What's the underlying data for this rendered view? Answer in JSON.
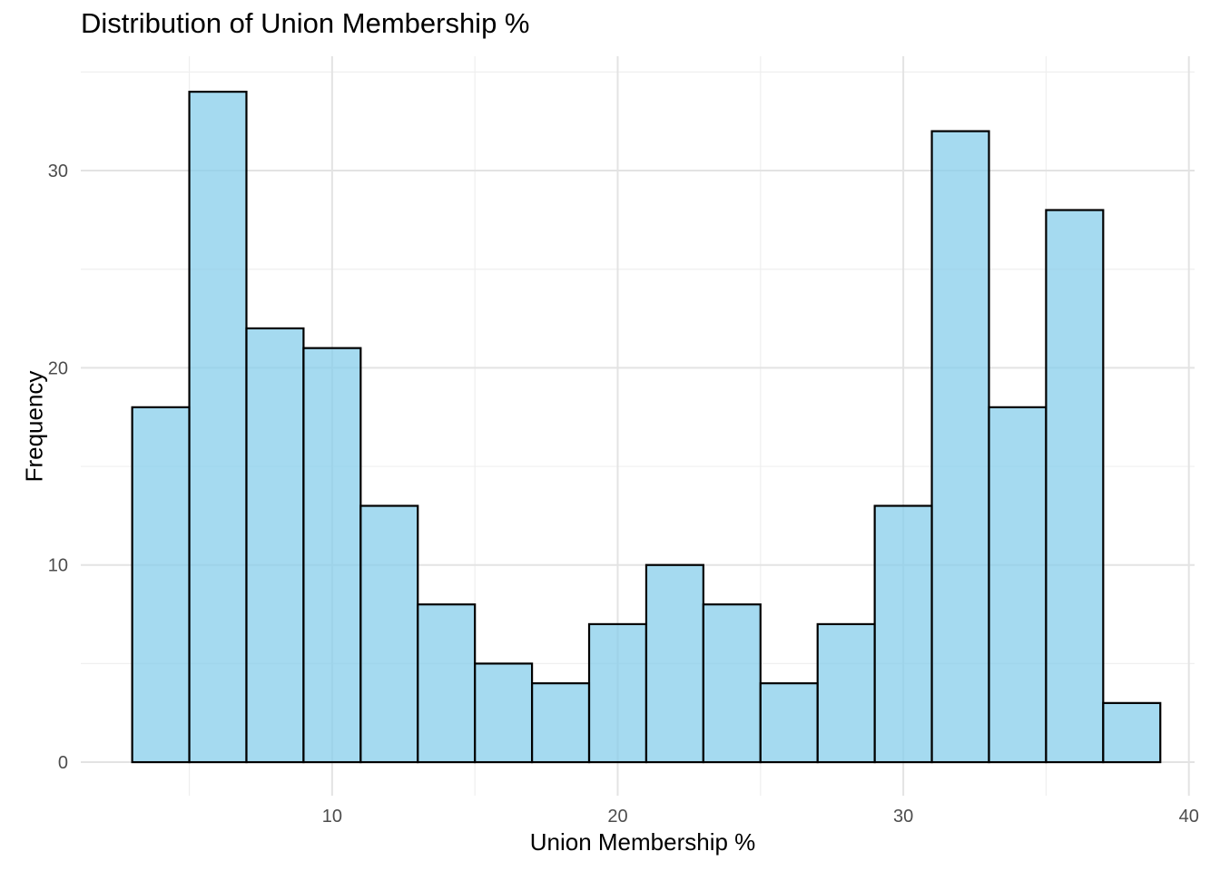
{
  "chart_data": {
    "type": "bar",
    "subtype": "histogram",
    "title": "Distribution of Union Membership %",
    "xlabel": "Union Membership %",
    "ylabel": "Frequency",
    "bin_width": 2,
    "bins": [
      {
        "start": 3,
        "end": 5,
        "count": 18
      },
      {
        "start": 5,
        "end": 7,
        "count": 34
      },
      {
        "start": 7,
        "end": 9,
        "count": 22
      },
      {
        "start": 9,
        "end": 11,
        "count": 21
      },
      {
        "start": 11,
        "end": 13,
        "count": 13
      },
      {
        "start": 13,
        "end": 15,
        "count": 8
      },
      {
        "start": 15,
        "end": 17,
        "count": 5
      },
      {
        "start": 17,
        "end": 19,
        "count": 4
      },
      {
        "start": 19,
        "end": 21,
        "count": 7
      },
      {
        "start": 21,
        "end": 23,
        "count": 10
      },
      {
        "start": 23,
        "end": 25,
        "count": 8
      },
      {
        "start": 25,
        "end": 27,
        "count": 4
      },
      {
        "start": 27,
        "end": 29,
        "count": 7
      },
      {
        "start": 29,
        "end": 31,
        "count": 13
      },
      {
        "start": 31,
        "end": 33,
        "count": 32
      },
      {
        "start": 33,
        "end": 35,
        "count": 18
      },
      {
        "start": 35,
        "end": 37,
        "count": 28
      },
      {
        "start": 37,
        "end": 39,
        "count": 3
      }
    ],
    "xlim": [
      1.2,
      40.2
    ],
    "ylim": [
      -1.7,
      35.8
    ],
    "x_ticks": [
      10,
      20,
      30,
      40
    ],
    "y_ticks": [
      0,
      10,
      20,
      30
    ],
    "grid": true,
    "legend": "none",
    "colors": {
      "bar_fill": "#87CEEB",
      "bar_fill_opacity": 0.75,
      "bar_stroke": "#000000",
      "grid_major": "#e3e3e3",
      "grid_minor": "#efefef",
      "tick_text": "#4d4d4d"
    }
  }
}
